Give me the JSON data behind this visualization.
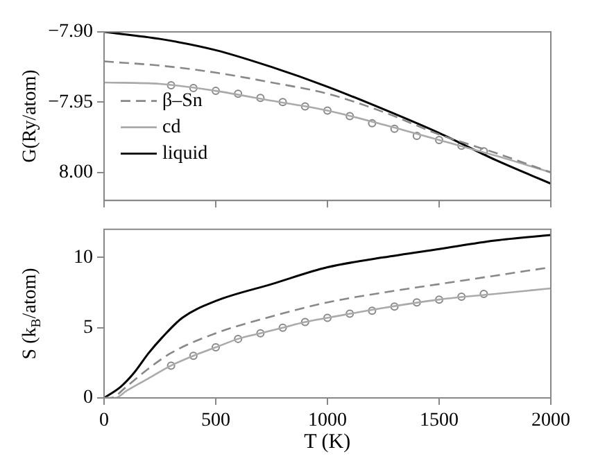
{
  "chart_data": [
    {
      "type": "line",
      "ylabel": "G(Ry/atom)",
      "xlim": [
        0,
        2000
      ],
      "xticks": [
        0,
        500,
        1000,
        1500,
        2000
      ],
      "ylim": [
        -8.02,
        -7.9
      ],
      "yticks": [
        {
          "value": -7.9,
          "label": "−7.90"
        },
        {
          "value": -7.95,
          "label": "−7.95"
        },
        {
          "value": -8.0,
          "label": "8.00"
        }
      ],
      "tick_labels": "y",
      "grid": false,
      "legend": "left",
      "series": [
        {
          "name": "β–Sn",
          "color": "#888888",
          "line_style": "dashed",
          "marker": "none",
          "x": [
            0,
            250,
            500,
            750,
            1000,
            1250,
            1500,
            1750,
            2000
          ],
          "values": [
            -7.921,
            -7.924,
            -7.929,
            -7.936,
            -7.944,
            -7.957,
            -7.973,
            -7.986,
            -8.0
          ]
        },
        {
          "name": "cd",
          "color": "#aaaaaa",
          "line_style": "solid",
          "marker": "none",
          "x": [
            0,
            250,
            500,
            750,
            1000,
            1250,
            1500,
            1750,
            2000
          ],
          "values": [
            -7.936,
            -7.937,
            -7.942,
            -7.949,
            -7.956,
            -7.966,
            -7.977,
            -7.988,
            -8.0
          ]
        },
        {
          "name": "liquid",
          "color": "#000000",
          "line_style": "solid",
          "marker": "none",
          "x": [
            0,
            250,
            500,
            750,
            1000,
            1250,
            1500,
            1750,
            2000
          ],
          "values": [
            -7.9,
            -7.905,
            -7.913,
            -7.925,
            -7.939,
            -7.955,
            -7.972,
            -7.991,
            -8.008
          ]
        },
        {
          "type": "scatter",
          "color": "#888888",
          "marker": "circle",
          "x": [
            300,
            400,
            500,
            600,
            700,
            800,
            900,
            1000,
            1100,
            1200,
            1300,
            1400,
            1500,
            1600,
            1700
          ],
          "values": [
            -7.938,
            -7.94,
            -7.942,
            -7.944,
            -7.947,
            -7.95,
            -7.953,
            -7.956,
            -7.96,
            -7.965,
            -7.969,
            -7.974,
            -7.977,
            -7.981,
            -7.985
          ]
        }
      ]
    },
    {
      "type": "line",
      "xlabel": "T (K)",
      "ylabel": "S (k$_{B}$/atom)",
      "xlim": [
        0,
        2000
      ],
      "xticks": [
        0,
        500,
        1000,
        1500,
        2000
      ],
      "ylim": [
        0,
        12
      ],
      "yticks": [
        0,
        5,
        10
      ],
      "grid": false,
      "series": [
        {
          "color": "#888888",
          "line_style": "dashed",
          "marker": "none",
          "x": [
            0,
            30,
            100,
            200,
            300,
            500,
            750,
            1000,
            1250,
            1500,
            1750,
            2000
          ],
          "values": [
            0,
            0,
            0.8,
            2.1,
            3.2,
            4.6,
            5.8,
            6.8,
            7.5,
            8.1,
            8.7,
            9.3
          ]
        },
        {
          "color": "#aaaaaa",
          "line_style": "solid",
          "marker": "none",
          "x": [
            0,
            50,
            100,
            200,
            300,
            400,
            500,
            600,
            700,
            800,
            900,
            1000,
            1250,
            1500,
            1750,
            2000
          ],
          "values": [
            0,
            0,
            0.5,
            1.4,
            2.3,
            3.0,
            3.6,
            4.2,
            4.6,
            5.0,
            5.4,
            5.7,
            6.4,
            7.0,
            7.4,
            7.8
          ]
        },
        {
          "color": "#000000",
          "line_style": "solid",
          "marker": "none",
          "x": [
            0,
            75,
            135,
            200,
            260,
            350,
            500,
            750,
            1000,
            1250,
            1500,
            1750,
            2000
          ],
          "values": [
            0,
            0.8,
            1.8,
            3.2,
            4.3,
            5.7,
            6.9,
            8.1,
            9.3,
            10.0,
            10.6,
            11.2,
            11.6
          ]
        },
        {
          "type": "scatter",
          "color": "#888888",
          "marker": "circle",
          "x": [
            300,
            400,
            500,
            600,
            700,
            800,
            900,
            1000,
            1100,
            1200,
            1300,
            1400,
            1500,
            1600,
            1700
          ],
          "values": [
            2.3,
            3.0,
            3.6,
            4.2,
            4.6,
            5.0,
            5.4,
            5.7,
            6.0,
            6.2,
            6.5,
            6.8,
            7.0,
            7.2,
            7.4
          ]
        }
      ]
    }
  ]
}
